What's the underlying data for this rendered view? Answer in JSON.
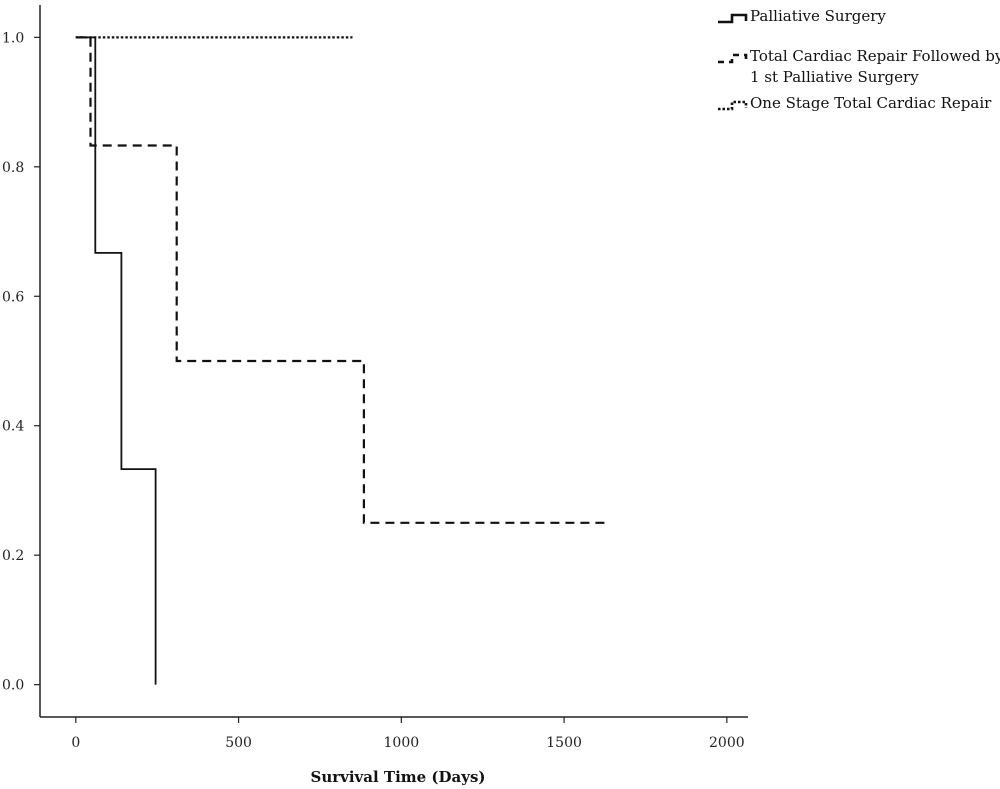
{
  "chart_data": {
    "type": "line",
    "step": true,
    "title": "",
    "xlabel": "Survival Time (Days)",
    "ylabel": "",
    "xlim": [
      -110,
      2065
    ],
    "ylim": [
      -0.05,
      1.05
    ],
    "x_ticks": [
      0,
      500,
      1000,
      1500,
      2000
    ],
    "y_ticks": [
      0.0,
      0.2,
      0.4,
      0.6,
      0.8,
      1.0
    ],
    "x_tick_labels": [
      "0",
      "500",
      "1000",
      "1500",
      "2000"
    ],
    "y_tick_labels": [
      "0.0",
      "0.2",
      "0.4",
      "0.6",
      "0.8",
      "1.0"
    ],
    "legend_position": "top-right",
    "series": [
      {
        "name": "Palliative Surgery",
        "style": "solid",
        "points": [
          [
            0,
            1.0
          ],
          [
            60,
            1.0
          ],
          [
            60,
            0.667
          ],
          [
            140,
            0.667
          ],
          [
            140,
            0.333
          ],
          [
            245,
            0.333
          ],
          [
            245,
            0.0
          ]
        ]
      },
      {
        "name": "Total Cardiac Repair Followed by\n1 st Palliative Surgery",
        "legend_lines": [
          "Total Cardiac Repair Followed by",
          "1 st Palliative Surgery"
        ],
        "style": "dashed",
        "points": [
          [
            0,
            1.0
          ],
          [
            45,
            1.0
          ],
          [
            45,
            0.833
          ],
          [
            310,
            0.833
          ],
          [
            310,
            0.5
          ],
          [
            885,
            0.5
          ],
          [
            885,
            0.25
          ],
          [
            1640,
            0.25
          ]
        ]
      },
      {
        "name": "One Stage Total Cardiac Repair",
        "style": "dotted",
        "points": [
          [
            0,
            1.0
          ],
          [
            850,
            1.0
          ]
        ]
      }
    ]
  }
}
